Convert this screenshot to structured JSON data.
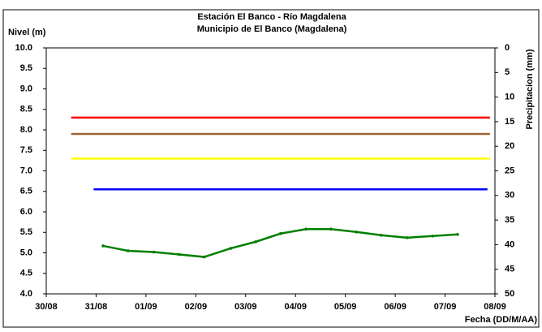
{
  "chart_data": {
    "type": "line",
    "title": "Estación El Banco - Río Magdalena",
    "subtitle": "Municipio de El Banco (Magdalena)",
    "y_label": "Nivel (m)",
    "y2_label": "Precipitacion (mm)",
    "x_label": "Fecha (DD/M/AA)",
    "xlim": [
      0,
      9
    ],
    "xticks": [
      {
        "value": 0,
        "label": "30/08"
      },
      {
        "value": 1,
        "label": "31/08"
      },
      {
        "value": 2,
        "label": "01/09"
      },
      {
        "value": 3,
        "label": "02/09"
      },
      {
        "value": 4,
        "label": "03/09"
      },
      {
        "value": 5,
        "label": "04/09"
      },
      {
        "value": 6,
        "label": "05/09"
      },
      {
        "value": 7,
        "label": "06/09"
      },
      {
        "value": 8,
        "label": "07/09"
      },
      {
        "value": 9,
        "label": "08/09"
      }
    ],
    "ylim": [
      4,
      10
    ],
    "yticks": [
      {
        "value": 4,
        "label": "4.0"
      },
      4.5,
      {
        "value": 5,
        "label": "5.0"
      },
      5.5,
      {
        "value": 6,
        "label": "6.0"
      },
      6.5,
      {
        "value": 7,
        "label": "7.0"
      },
      7.5,
      {
        "value": 8,
        "label": "8.0"
      },
      8.5,
      {
        "value": 9,
        "label": "9.0"
      },
      9.5,
      {
        "value": 10,
        "label": "10.0"
      }
    ],
    "y2lim": [
      50,
      0
    ],
    "y2ticks": [
      0,
      5,
      10,
      15,
      20,
      25,
      30,
      35,
      40,
      45,
      50
    ],
    "reference_lines": [
      {
        "value": 8.3,
        "color": "#ff0000",
        "x": [
          0.5,
          8.9
        ]
      },
      {
        "value": 7.9,
        "color": "#996633",
        "x": [
          0.5,
          8.9
        ]
      },
      {
        "value": 7.3,
        "color": "#ffff00",
        "x": [
          0.5,
          8.9
        ]
      },
      {
        "value": 6.55,
        "color": "#0000ff",
        "x": [
          0.95,
          8.85
        ]
      }
    ],
    "series": [
      {
        "color": "#008000",
        "x": [
          1.14,
          1.64,
          2.16,
          2.67,
          3.17,
          3.7,
          4.2,
          4.7,
          5.21,
          5.71,
          6.22,
          6.72,
          7.24,
          7.75,
          8.25
        ],
        "values": [
          5.17,
          5.05,
          5.02,
          4.96,
          4.9,
          5.11,
          5.27,
          5.47,
          5.58,
          5.58,
          5.51,
          5.43,
          5.37,
          5.41,
          5.45
        ]
      }
    ]
  }
}
